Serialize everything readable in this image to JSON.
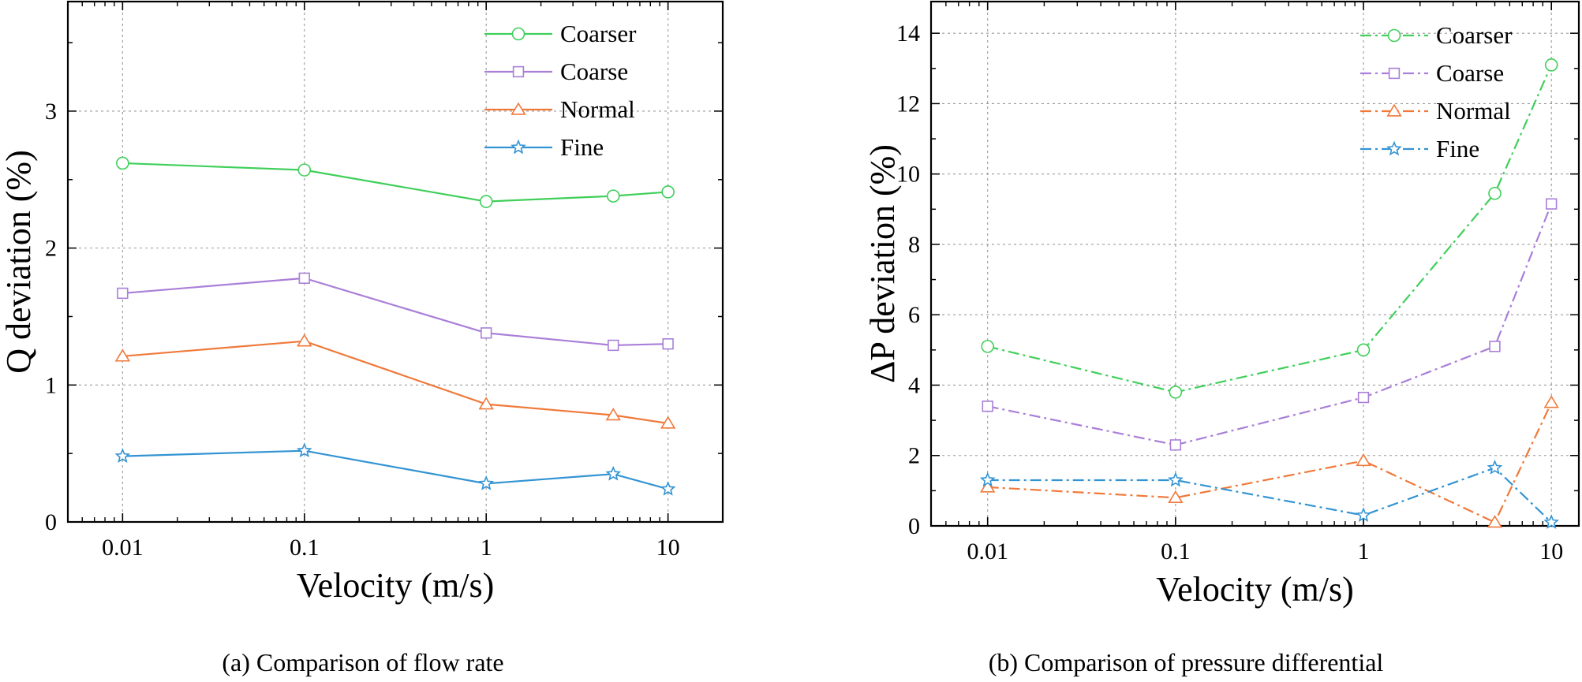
{
  "chart_data": [
    {
      "type": "line",
      "id": "a",
      "caption": "(a) Comparison of flow rate",
      "xlabel": "Velocity (m/s)",
      "ylabel": "Q deviation (%)",
      "xscale": "log",
      "xlim": [
        0.005,
        20
      ],
      "ylim": [
        0,
        3.8
      ],
      "xticks": [
        0.01,
        0.1,
        1,
        10
      ],
      "xtick_labels": [
        "0.01",
        "0.1",
        "1",
        "10"
      ],
      "yticks": [
        0,
        1,
        2,
        3
      ],
      "ytick_labels": [
        "0",
        "1",
        "2",
        "3"
      ],
      "grid": true,
      "line_style": "solid",
      "legend_position": "top-right",
      "x": [
        0.01,
        0.1,
        1,
        5,
        10
      ],
      "series": [
        {
          "name": "Coarser",
          "color": "#3fcf5a",
          "marker": "circle",
          "values": [
            2.62,
            2.57,
            2.34,
            2.38,
            2.41
          ]
        },
        {
          "name": "Coarse",
          "color": "#a97fd8",
          "marker": "square",
          "values": [
            1.67,
            1.78,
            1.38,
            1.29,
            1.3
          ]
        },
        {
          "name": "Normal",
          "color": "#f0793a",
          "marker": "triangle",
          "values": [
            1.21,
            1.32,
            0.86,
            0.78,
            0.72
          ]
        },
        {
          "name": "Fine",
          "color": "#3394d3",
          "marker": "star",
          "values": [
            0.48,
            0.52,
            0.28,
            0.35,
            0.24
          ]
        }
      ]
    },
    {
      "type": "line",
      "id": "b",
      "caption": "(b) Comparison of pressure differential",
      "xlabel": "Velocity (m/s)",
      "ylabel": "ΔP deviation (%)",
      "xscale": "log",
      "xlim": [
        0.005,
        14
      ],
      "ylim": [
        0,
        14.9
      ],
      "xticks": [
        0.01,
        0.1,
        1,
        10
      ],
      "xtick_labels": [
        "0.01",
        "0.1",
        "1",
        "10"
      ],
      "yticks": [
        0,
        2,
        4,
        6,
        8,
        10,
        12,
        14
      ],
      "ytick_labels": [
        "0",
        "2",
        "4",
        "6",
        "8",
        "10",
        "12",
        "14"
      ],
      "grid": true,
      "line_style": "dash-dot",
      "legend_position": "top-right",
      "x": [
        0.01,
        0.1,
        1,
        5,
        10
      ],
      "series": [
        {
          "name": "Coarser",
          "color": "#3fcf5a",
          "marker": "circle",
          "values": [
            5.1,
            3.8,
            5.0,
            9.45,
            13.1
          ]
        },
        {
          "name": "Coarse",
          "color": "#a97fd8",
          "marker": "square",
          "values": [
            3.4,
            2.3,
            3.65,
            5.1,
            9.15
          ]
        },
        {
          "name": "Normal",
          "color": "#f0793a",
          "marker": "triangle",
          "values": [
            1.1,
            0.8,
            1.85,
            0.1,
            3.5
          ]
        },
        {
          "name": "Fine",
          "color": "#3394d3",
          "marker": "star",
          "values": [
            1.3,
            1.3,
            0.3,
            1.65,
            0.1
          ]
        }
      ]
    }
  ]
}
